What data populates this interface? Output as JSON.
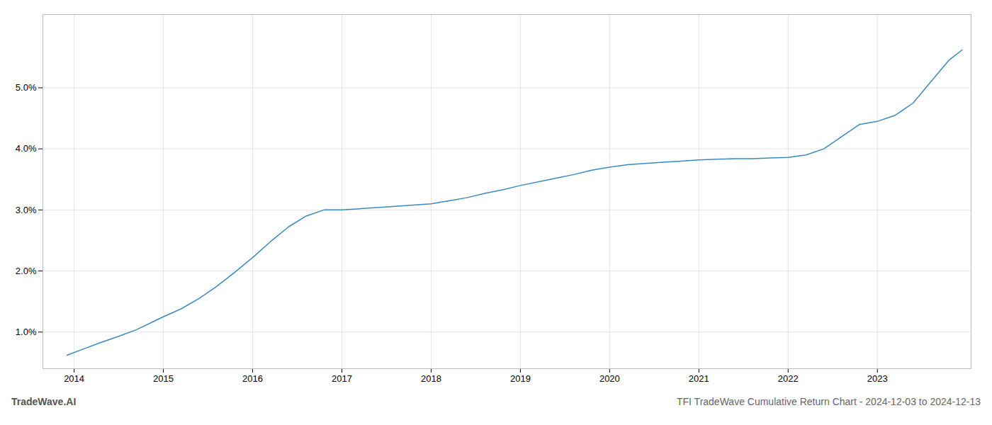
{
  "chart_data": {
    "type": "line",
    "title": "TFI TradeWave Cumulative Return Chart - 2024-12-03 to 2024-12-13",
    "annotations": [
      "TradeWave.AI"
    ],
    "x": [
      2013.92,
      2014.1,
      2014.3,
      2014.5,
      2014.7,
      2014.9,
      2015.0,
      2015.2,
      2015.4,
      2015.6,
      2015.8,
      2016.0,
      2016.2,
      2016.4,
      2016.6,
      2016.8,
      2017.0,
      2017.2,
      2017.4,
      2017.6,
      2017.8,
      2018.0,
      2018.2,
      2018.4,
      2018.6,
      2018.8,
      2019.0,
      2019.2,
      2019.4,
      2019.6,
      2019.8,
      2020.0,
      2020.2,
      2020.4,
      2020.6,
      2020.8,
      2021.0,
      2021.2,
      2021.4,
      2021.6,
      2021.8,
      2022.0,
      2022.2,
      2022.4,
      2022.6,
      2022.8,
      2023.0,
      2023.2,
      2023.4,
      2023.6,
      2023.8,
      2023.95
    ],
    "values": [
      0.0062,
      0.0072,
      0.0083,
      0.0093,
      0.0104,
      0.0118,
      0.0125,
      0.0138,
      0.0155,
      0.0175,
      0.0198,
      0.0222,
      0.0248,
      0.0272,
      0.029,
      0.03,
      0.03,
      0.0302,
      0.0304,
      0.0306,
      0.0308,
      0.031,
      0.0315,
      0.032,
      0.0327,
      0.0333,
      0.034,
      0.0346,
      0.0352,
      0.0358,
      0.0365,
      0.037,
      0.0374,
      0.0376,
      0.0378,
      0.038,
      0.0382,
      0.0383,
      0.0384,
      0.0384,
      0.0385,
      0.0386,
      0.039,
      0.04,
      0.042,
      0.044,
      0.0445,
      0.0455,
      0.0475,
      0.051,
      0.0545,
      0.0562
    ],
    "color": "#3a8abf",
    "xlim": [
      2013.65,
      2024.05
    ],
    "xticks": [
      2014,
      2015,
      2016,
      2017,
      2018,
      2019,
      2020,
      2021,
      2022,
      2023
    ],
    "ylim": [
      0.004,
      0.062
    ],
    "yticks": [
      {
        "value": 0.01,
        "label": "1.0%"
      },
      {
        "value": 0.02,
        "label": "2.0%"
      },
      {
        "value": 0.03,
        "label": "3.0%"
      },
      {
        "value": 0.04,
        "label": "4.0%"
      },
      {
        "value": 0.05,
        "label": "5.0%"
      }
    ],
    "grid": true
  }
}
